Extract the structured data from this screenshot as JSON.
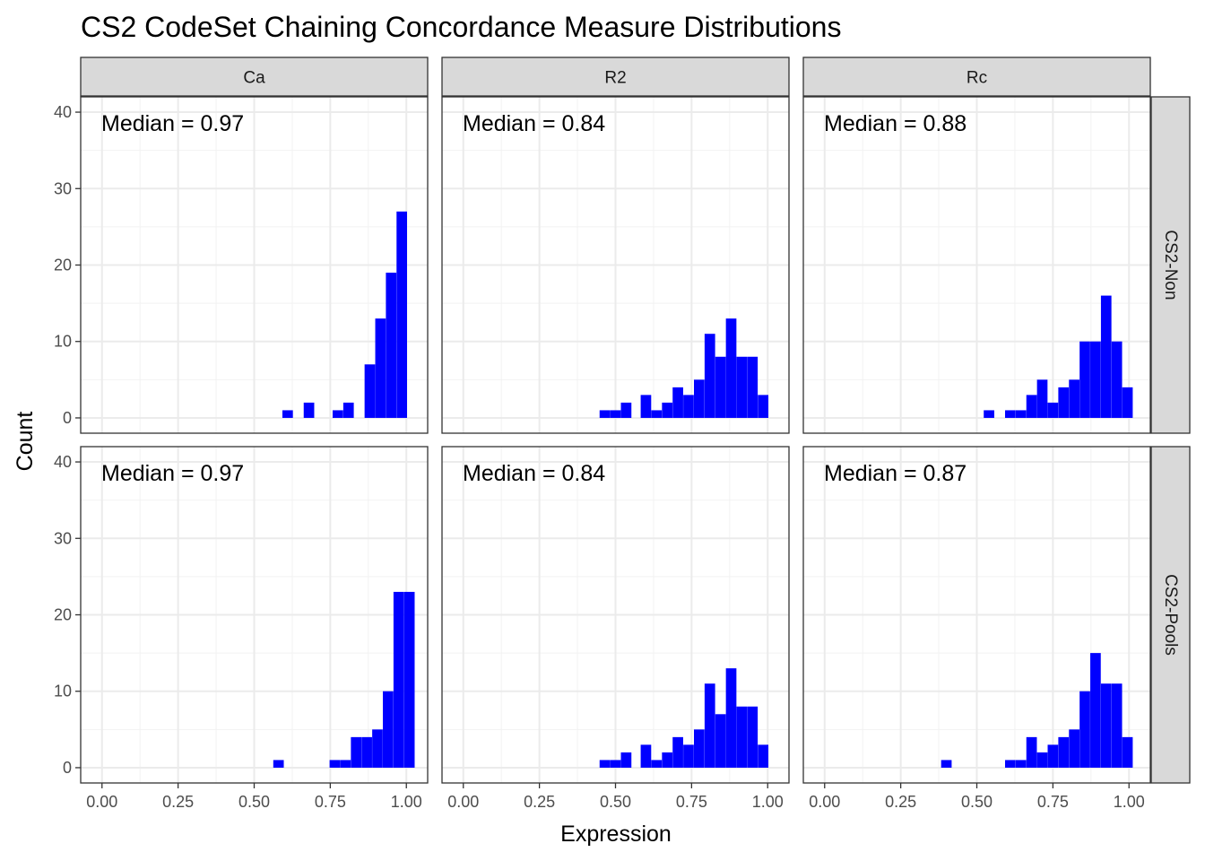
{
  "chart_data": {
    "type": "bar",
    "subtype": "histogram-facet-grid",
    "title": "CS2 CodeSet Chaining Concordance Measure Distributions",
    "xlabel": "Expression",
    "ylabel": "Count",
    "xlim": [
      -0.07,
      1.07
    ],
    "ylim": [
      -2,
      42
    ],
    "x_ticks": [
      0,
      0.25,
      0.5,
      0.75,
      1.0
    ],
    "x_tick_labels": [
      "0.00",
      "0.25",
      "0.50",
      "0.75",
      "1.00"
    ],
    "y_ticks": [
      0,
      10,
      20,
      30,
      40
    ],
    "y_tick_labels": [
      "0",
      "10",
      "20",
      "30",
      "40"
    ],
    "bin_width": 0.0345,
    "grid": true,
    "bar_color": "#0000ff",
    "columns": [
      "Ca",
      "R2",
      "Rc"
    ],
    "rows": [
      "CS2-Non",
      "CS2-Pools"
    ],
    "panels": [
      {
        "column": "Ca",
        "row": "CS2-Non",
        "median_label": "Median = 0.97",
        "bins": [
          [
            0.61,
            1
          ],
          [
            0.68,
            2
          ],
          [
            0.775,
            1
          ],
          [
            0.81,
            2
          ],
          [
            0.88,
            7
          ],
          [
            0.915,
            13
          ],
          [
            0.95,
            19
          ],
          [
            0.985,
            27
          ]
        ]
      },
      {
        "column": "R2",
        "row": "CS2-Non",
        "median_label": "Median = 0.84",
        "bins": [
          [
            0.465,
            1
          ],
          [
            0.5,
            1
          ],
          [
            0.535,
            2
          ],
          [
            0.6,
            3
          ],
          [
            0.635,
            1
          ],
          [
            0.67,
            2
          ],
          [
            0.705,
            4
          ],
          [
            0.74,
            3
          ],
          [
            0.775,
            5
          ],
          [
            0.81,
            11
          ],
          [
            0.845,
            8
          ],
          [
            0.88,
            13
          ],
          [
            0.915,
            8
          ],
          [
            0.95,
            8
          ],
          [
            0.985,
            3
          ]
        ]
      },
      {
        "column": "Rc",
        "row": "CS2-Non",
        "median_label": "Median = 0.88",
        "bins": [
          [
            0.54,
            1
          ],
          [
            0.61,
            1
          ],
          [
            0.645,
            1
          ],
          [
            0.68,
            3
          ],
          [
            0.715,
            5
          ],
          [
            0.75,
            2
          ],
          [
            0.785,
            4
          ],
          [
            0.82,
            5
          ],
          [
            0.855,
            10
          ],
          [
            0.89,
            10
          ],
          [
            0.925,
            16
          ],
          [
            0.96,
            10
          ],
          [
            0.995,
            4
          ]
        ]
      },
      {
        "column": "Ca",
        "row": "CS2-Pools",
        "median_label": "Median = 0.97",
        "bins": [
          [
            0.58,
            1
          ],
          [
            0.765,
            1
          ],
          [
            0.8,
            1
          ],
          [
            0.835,
            4
          ],
          [
            0.87,
            4
          ],
          [
            0.905,
            5
          ],
          [
            0.94,
            10
          ],
          [
            0.975,
            23
          ],
          [
            1.01,
            23
          ]
        ]
      },
      {
        "column": "R2",
        "row": "CS2-Pools",
        "median_label": "Median = 0.84",
        "bins": [
          [
            0.465,
            1
          ],
          [
            0.5,
            1
          ],
          [
            0.535,
            2
          ],
          [
            0.6,
            3
          ],
          [
            0.635,
            1
          ],
          [
            0.67,
            2
          ],
          [
            0.705,
            4
          ],
          [
            0.74,
            3
          ],
          [
            0.775,
            5
          ],
          [
            0.81,
            11
          ],
          [
            0.845,
            7
          ],
          [
            0.88,
            13
          ],
          [
            0.915,
            8
          ],
          [
            0.95,
            8
          ],
          [
            0.985,
            3
          ]
        ]
      },
      {
        "column": "Rc",
        "row": "CS2-Pools",
        "median_label": "Median = 0.87",
        "bins": [
          [
            0.4,
            1
          ],
          [
            0.61,
            1
          ],
          [
            0.645,
            1
          ],
          [
            0.68,
            4
          ],
          [
            0.715,
            2
          ],
          [
            0.75,
            3
          ],
          [
            0.785,
            4
          ],
          [
            0.82,
            5
          ],
          [
            0.855,
            10
          ],
          [
            0.89,
            15
          ],
          [
            0.925,
            11
          ],
          [
            0.96,
            11
          ],
          [
            0.995,
            4
          ]
        ]
      }
    ]
  }
}
